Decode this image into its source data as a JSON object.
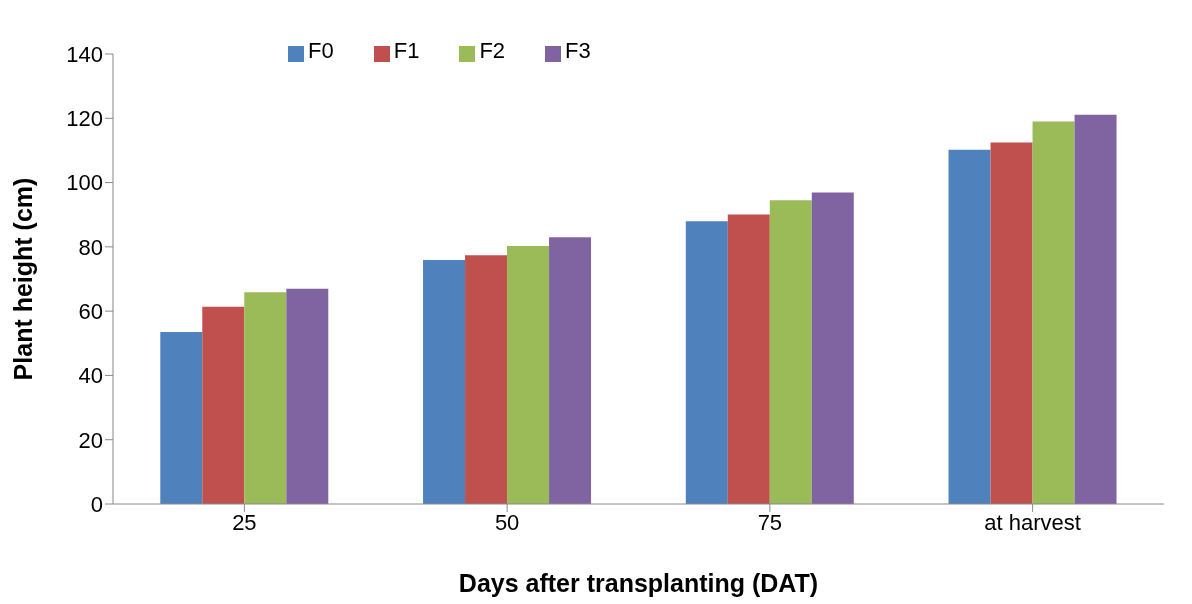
{
  "chart_data": {
    "type": "bar",
    "xlabel": "Days after transplanting (DAT)",
    "ylabel": "Plant height (cm)",
    "categories": [
      "25",
      "50",
      "75",
      "at harvest"
    ],
    "series": [
      {
        "name": "F0",
        "color": "#4f81bd",
        "values": [
          53.5,
          75.9,
          88.0,
          110.2
        ]
      },
      {
        "name": "F1",
        "color": "#c0504d",
        "values": [
          61.4,
          77.4,
          90.1,
          112.5
        ]
      },
      {
        "name": "F2",
        "color": "#9bbb59",
        "values": [
          65.9,
          80.3,
          94.5,
          119.0
        ]
      },
      {
        "name": "F3",
        "color": "#8064a2",
        "values": [
          67.0,
          83.0,
          96.9,
          121.1
        ]
      }
    ],
    "ylim": [
      0,
      140
    ],
    "yticks": [
      0,
      20,
      40,
      60,
      80,
      100,
      120,
      140
    ],
    "grid": false,
    "legend": "top"
  }
}
